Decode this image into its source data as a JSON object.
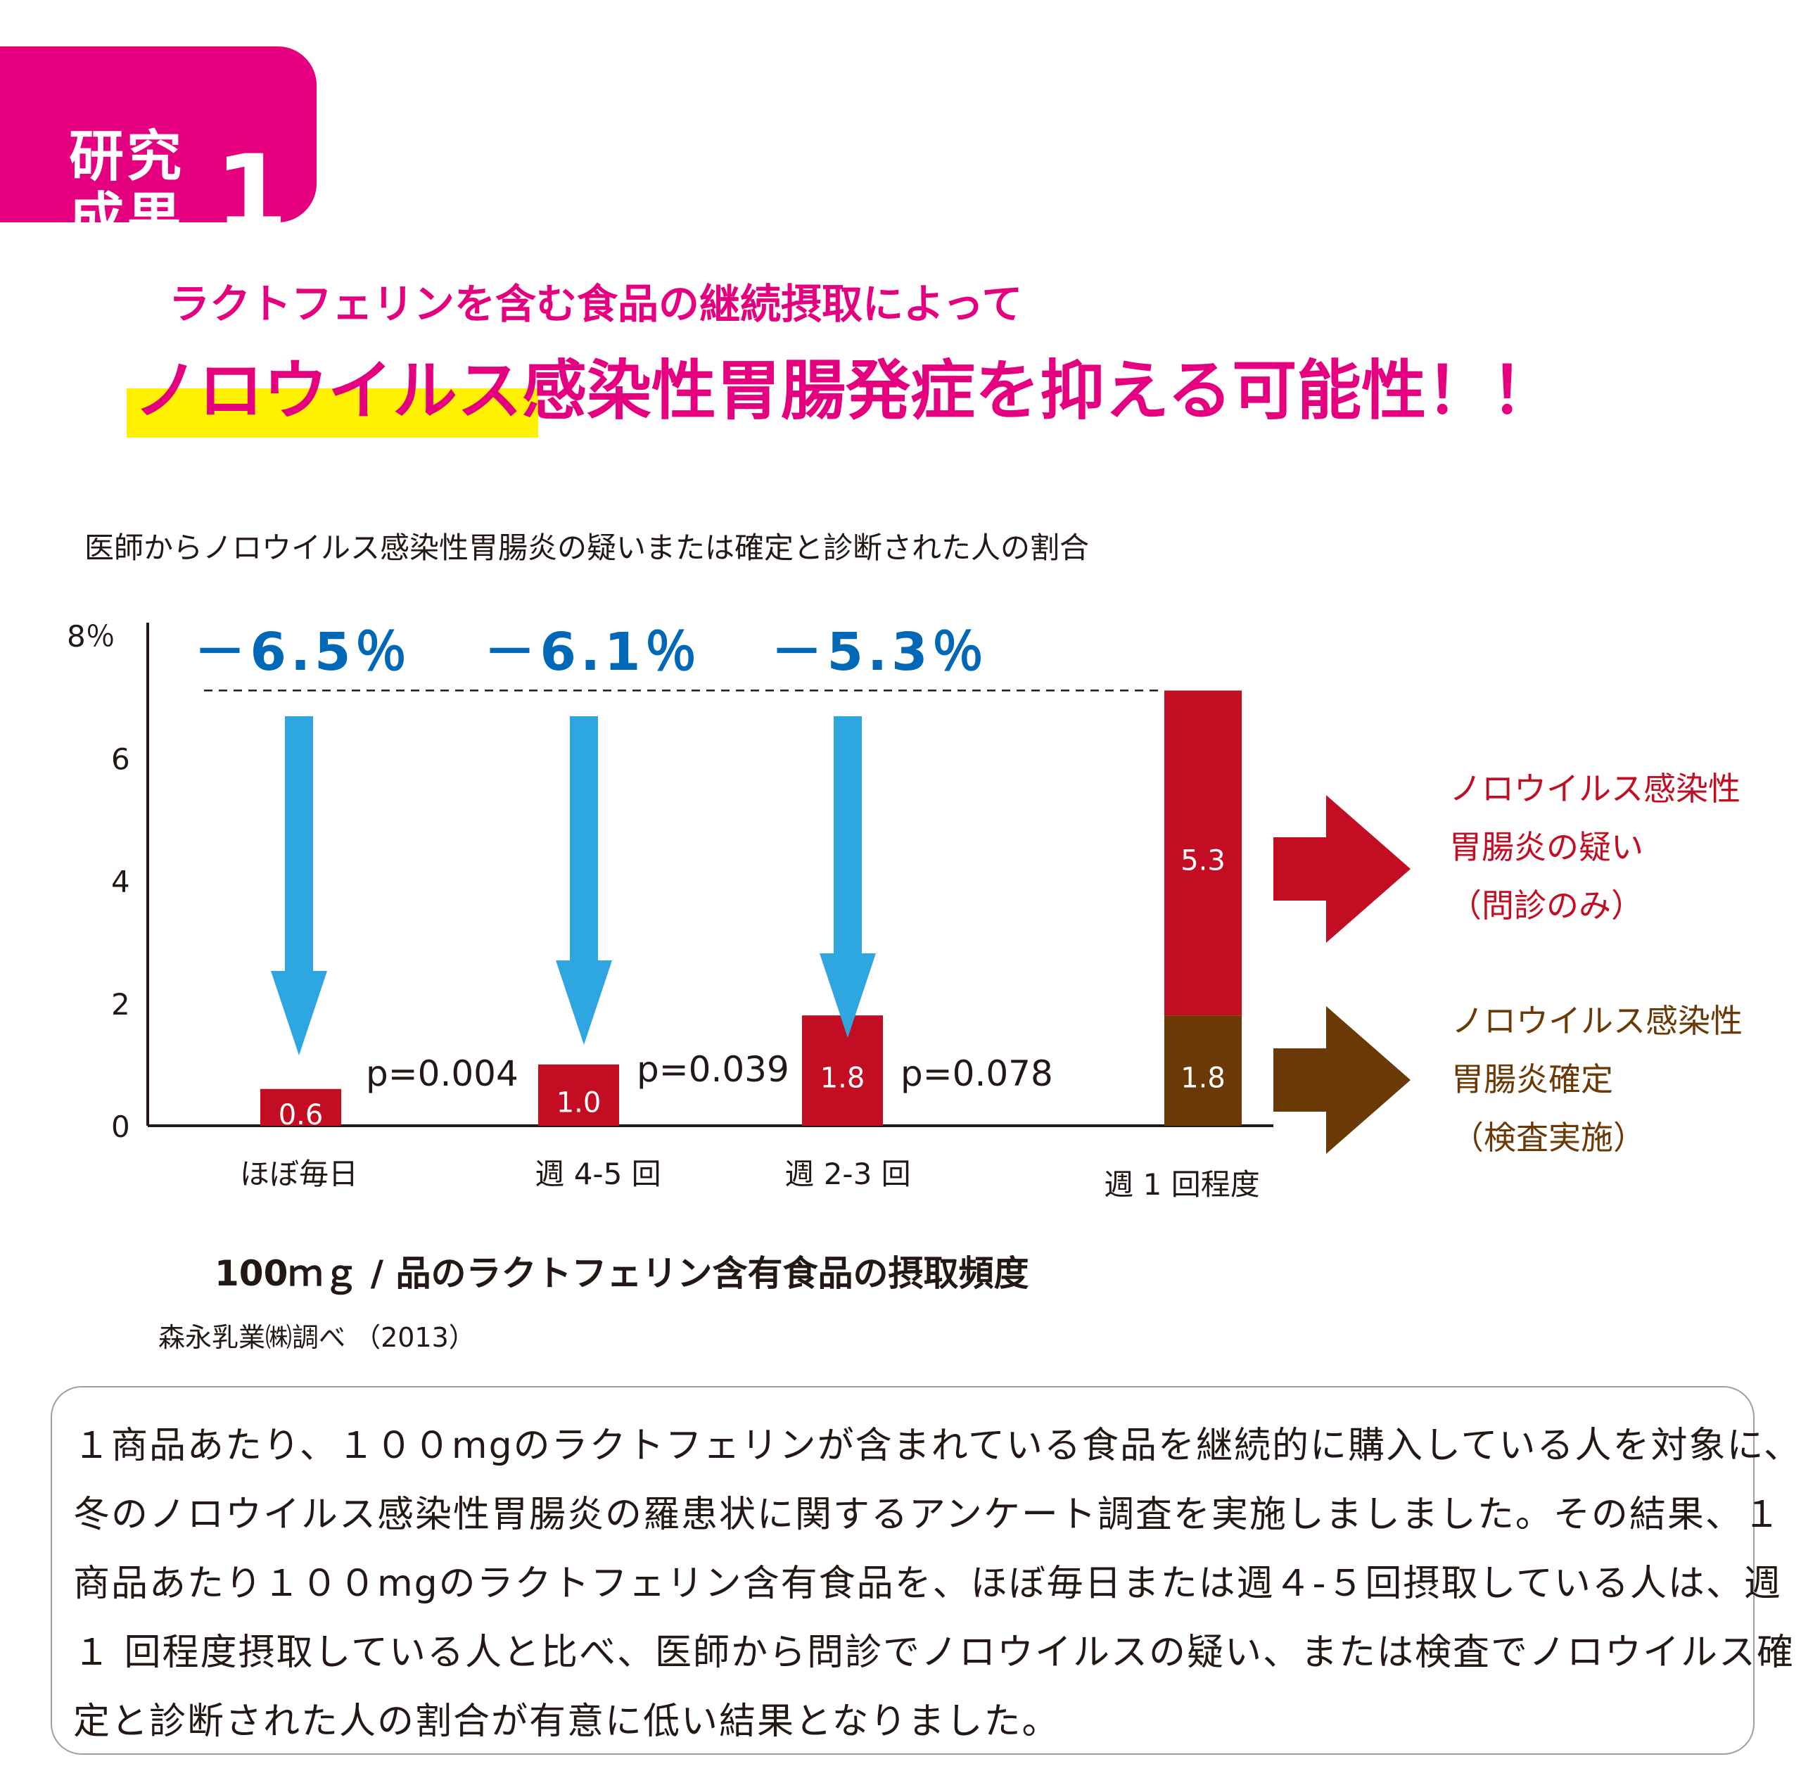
{
  "badge": {
    "line1": "研究",
    "line2": "成果",
    "number": "1"
  },
  "subtitle": "ラクトフェリンを含む食品の継続摂取によって",
  "headline": {
    "part1": "ノロウイルス",
    "part2": "感染性胃腸発症を抑える可能性！！"
  },
  "caption": "医師からノロウイルス感染性胃腸炎の疑いまたは確定と診断された人の割合",
  "chart_data": {
    "type": "bar",
    "stacked": true,
    "categories": [
      "ほぼ毎日",
      "週 4-5 回",
      "週 2-3 回",
      "週 1 回程度"
    ],
    "series": [
      {
        "name": "ノロウイルス感染性胃腸炎確定（検査実施）",
        "values": [
          0.6,
          1.0,
          1.8,
          1.8
        ],
        "color": "#6b3906"
      },
      {
        "name": "ノロウイルス感染性胃腸炎の疑い（問診のみ）",
        "values": [
          0,
          0,
          0,
          5.3
        ],
        "color": "#c30d23"
      }
    ],
    "bar_labels": [
      "0.6",
      "1.0",
      "1.8",
      "1.8",
      "5.3"
    ],
    "reductions": [
      "－6.5％",
      "－6.1％",
      "－5.3％"
    ],
    "p_values": [
      "p=0.004",
      "p=0.039",
      "p=0.078"
    ],
    "y_ticks": [
      "0",
      "2",
      "4",
      "6",
      "8％"
    ],
    "ylim": [
      0,
      8
    ],
    "xlabel": "100ｍｇ / 品のラクトフェリン含有食品の摂取頻度",
    "legend": [
      {
        "lines": [
          "ノロウイルス感染性",
          "胃腸炎の疑い",
          "（問診のみ）"
        ],
        "color": "#c30d23"
      },
      {
        "lines": [
          "ノロウイルス感染性",
          "胃腸炎確定",
          "（検査実施）"
        ],
        "color": "#6b3906"
      }
    ],
    "colors": {
      "arrow": "#2ea7e0",
      "reduction_text": "#0068b7",
      "axis": "#231815"
    }
  },
  "source": "森永乳業㈱調べ （2013）",
  "body_lines": [
    "１商品あたり、１００mgのラクトフェリンが含まれている食品を継続的に購入している人を対象に、昨",
    "冬のノロウイルス感染性胃腸炎の羅患状に関するアンケート調査を実施しましました。その結果、１",
    "商品あたり１００mgのラクトフェリン含有食品を、ほぼ毎日または週４-５回摂取している人は、週",
    "１ 回程度摂取している人と比べ、医師から問診でノロウイルスの疑い、または検査でノロウイルス確",
    "定と診断された人の割合が有意に低い結果となりました。"
  ]
}
